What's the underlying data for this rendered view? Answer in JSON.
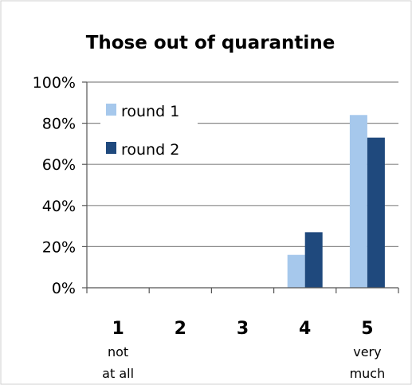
{
  "chart_data": {
    "type": "bar",
    "title": "Those out of quarantine",
    "categories": [
      "1",
      "2",
      "3",
      "4",
      "5"
    ],
    "category_sublabels": [
      [
        "not",
        "at all"
      ],
      [],
      [],
      [],
      [
        "very",
        "much"
      ]
    ],
    "series": [
      {
        "name": "round 1",
        "values": [
          0,
          0,
          0,
          16,
          84
        ],
        "color": "#a6c8ec"
      },
      {
        "name": "round 2",
        "values": [
          0,
          0,
          0,
          27,
          73
        ],
        "color": "#1f497d"
      }
    ],
    "ylim": [
      0,
      100
    ],
    "yticks": [
      "0%",
      "20%",
      "40%",
      "60%",
      "80%",
      "100%"
    ],
    "ytick_values": [
      0,
      20,
      40,
      60,
      80,
      100
    ],
    "grid": true,
    "legend_position": "top-left",
    "grid_color": "#888888",
    "axis_color": "#555555"
  }
}
